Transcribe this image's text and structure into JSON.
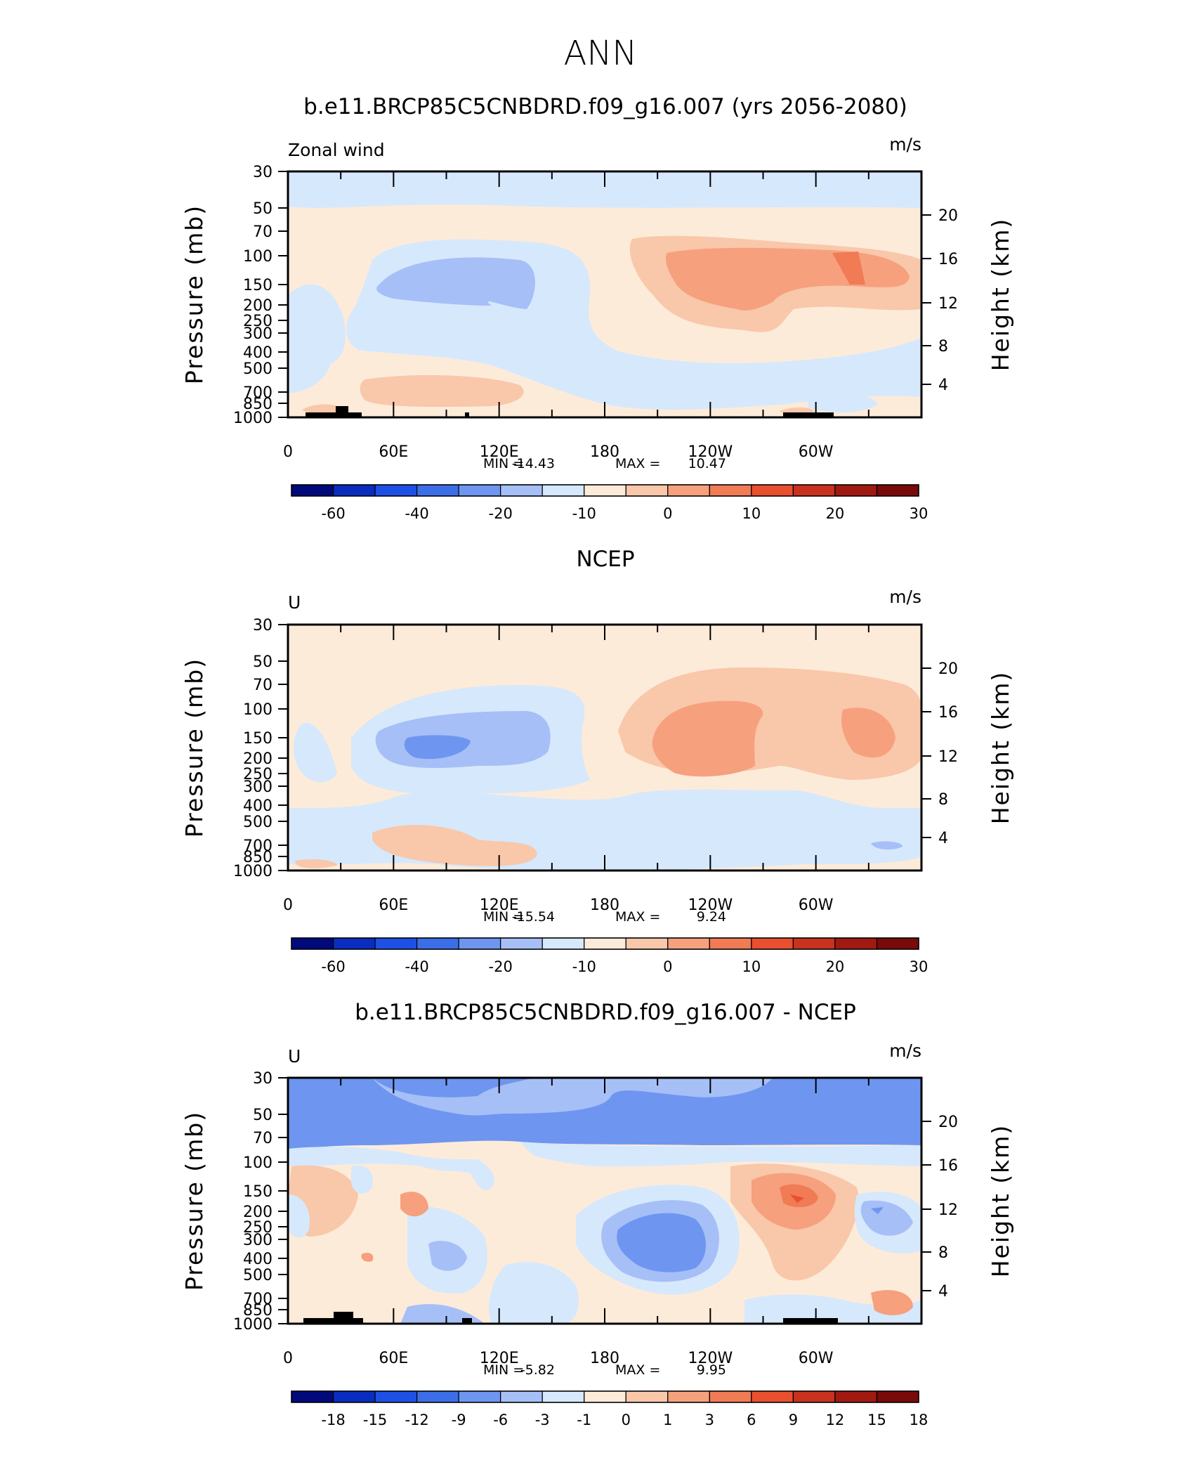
{
  "page": {
    "title": "ANN"
  },
  "colormaps": {
    "abs": [
      "#000a7a",
      "#0a2dbf",
      "#1e50e6",
      "#3c6ee8",
      "#6e96f0",
      "#a6bff7",
      "#d6e8fc",
      "#fdebd9",
      "#f9c7aa",
      "#f6a07d",
      "#f07b55",
      "#e8502f",
      "#c8321e",
      "#a01a12",
      "#780a0a"
    ],
    "diff": [
      "#000a7a",
      "#0a2dbf",
      "#1e50e6",
      "#3c6ee8",
      "#6e96f0",
      "#a6bff7",
      "#d6e8fc",
      "#fdebd9",
      "#f9c7aa",
      "#f6a07d",
      "#f07b55",
      "#e8502f",
      "#c8321e",
      "#a01a12",
      "#780a0a"
    ]
  },
  "shared_axes": {
    "x_ticks": [
      "0",
      "60E",
      "120E",
      "180",
      "120W",
      "60W"
    ],
    "y_left_label": "Pressure (mb)",
    "y_left_ticks": [
      "30",
      "50",
      "70",
      "100",
      "150",
      "200",
      "250",
      "300",
      "400",
      "500",
      "700",
      "850",
      "1000"
    ],
    "y_right_label": "Height (km)",
    "y_right_ticks": [
      "20",
      "16",
      "12",
      "8",
      "4"
    ]
  },
  "chart_data": [
    {
      "type": "heatmap",
      "title": "b.e11.BRCP85C5CNBDRD.f09_g16.007 (yrs 2056-2080)",
      "left_label": "Zonal wind",
      "units": "m/s",
      "stats": {
        "min_label": "MIN =",
        "min": "-14.43",
        "max_label": "MAX =",
        "max": "10.47"
      },
      "colorbar": {
        "colormap": "abs",
        "labels": [
          "-60",
          "-40",
          "-20",
          "-10",
          "0",
          "10",
          "20",
          "30"
        ]
      },
      "ylim": [
        1000,
        30
      ],
      "xlim": [
        0,
        360
      ]
    },
    {
      "type": "heatmap",
      "title": "NCEP",
      "left_label": "U",
      "units": "m/s",
      "stats": {
        "min_label": "MIN =",
        "min": "-15.54",
        "max_label": "MAX =",
        "max": "9.24"
      },
      "colorbar": {
        "colormap": "abs",
        "labels": [
          "-60",
          "-40",
          "-20",
          "-10",
          "0",
          "10",
          "20",
          "30"
        ]
      },
      "ylim": [
        1000,
        30
      ],
      "xlim": [
        0,
        360
      ]
    },
    {
      "type": "heatmap",
      "title": "b.e11.BRCP85C5CNBDRD.f09_g16.007 - NCEP",
      "left_label": "U",
      "units": "m/s",
      "stats": {
        "min_label": "MIN =",
        "min": "-5.82",
        "max_label": "MAX =",
        "max": "9.95"
      },
      "colorbar": {
        "colormap": "diff",
        "labels": [
          "-18",
          "-15",
          "-12",
          "-9",
          "-6",
          "-3",
          "-1",
          "0",
          "1",
          "3",
          "6",
          "9",
          "12",
          "15",
          "18"
        ]
      },
      "ylim": [
        1000,
        30
      ],
      "xlim": [
        0,
        360
      ]
    }
  ]
}
